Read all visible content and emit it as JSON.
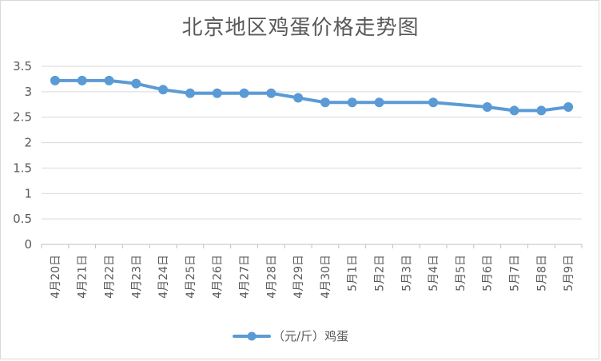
{
  "chart_data": {
    "type": "line",
    "title": "北京地区鸡蛋价格走势图",
    "categories": [
      "4月20日",
      "4月21日",
      "4月22日",
      "4月23日",
      "4月24日",
      "4月25日",
      "4月26日",
      "4月27日",
      "4月28日",
      "4月29日",
      "4月30日",
      "5月1日",
      "5月2日",
      "5月3日",
      "5月4日",
      "5月5日",
      "5月6日",
      "5月7日",
      "5月8日",
      "5月9日"
    ],
    "series": [
      {
        "name": "（元/斤）鸡蛋",
        "color": "#5b9bd5",
        "values": [
          3.22,
          3.22,
          3.22,
          3.16,
          3.04,
          2.97,
          2.97,
          2.97,
          2.97,
          2.88,
          2.79,
          2.79,
          2.79,
          null,
          2.79,
          null,
          2.7,
          2.63,
          2.63,
          2.7
        ]
      }
    ],
    "yticks": [
      "0",
      "0.5",
      "1",
      "1.5",
      "2",
      "2.5",
      "3",
      "3.5"
    ],
    "ylim": [
      0,
      3.5
    ],
    "grid": true,
    "legend_position": "bottom"
  }
}
